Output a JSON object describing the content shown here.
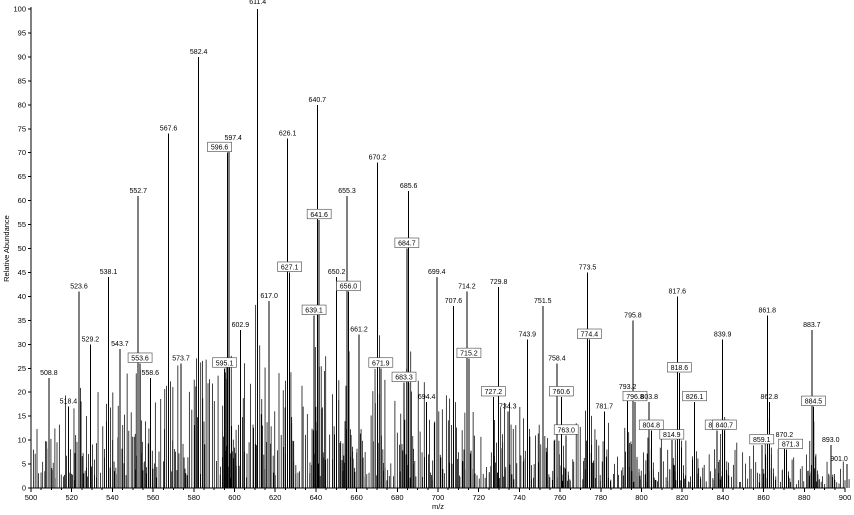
{
  "colors": {
    "background": "#ffffff",
    "foreground": "#000000"
  },
  "chart_data": {
    "type": "bar",
    "title": "",
    "xlabel": "m/z",
    "ylabel": "Relative Abundance",
    "xlim": [
      500,
      900
    ],
    "ylim": [
      0,
      100
    ],
    "x_major_tick_step": 20,
    "x_minor_tick_step": 5,
    "y_tick_step": 5,
    "grid": false,
    "legend": false,
    "peaks": [
      {
        "mz": 508.8,
        "ra": 23
      },
      {
        "mz": 518.4,
        "ra": 17
      },
      {
        "mz": 523.6,
        "ra": 41
      },
      {
        "mz": 529.2,
        "ra": 30
      },
      {
        "mz": 538.1,
        "ra": 44
      },
      {
        "mz": 543.7,
        "ra": 29
      },
      {
        "mz": 552.7,
        "ra": 61
      },
      {
        "mz": 553.6,
        "ra": 26,
        "boxed": true
      },
      {
        "mz": 558.6,
        "ra": 23
      },
      {
        "mz": 567.6,
        "ra": 74
      },
      {
        "mz": 573.7,
        "ra": 26
      },
      {
        "mz": 582.4,
        "ra": 90
      },
      {
        "mz": 595.1,
        "ra": 25,
        "boxed": true
      },
      {
        "mz": 596.6,
        "ra": 70,
        "boxed": true,
        "dx": -8
      },
      {
        "mz": 597.4,
        "ra": 72,
        "dx": 4
      },
      {
        "mz": 602.9,
        "ra": 33
      },
      {
        "mz": 611.4,
        "ra": 100,
        "dy": -3
      },
      {
        "mz": 617.0,
        "ra": 39
      },
      {
        "mz": 626.1,
        "ra": 73
      },
      {
        "mz": 627.1,
        "ra": 45,
        "boxed": true
      },
      {
        "mz": 639.1,
        "ra": 36,
        "boxed": true
      },
      {
        "mz": 640.7,
        "ra": 80
      },
      {
        "mz": 641.6,
        "ra": 56,
        "boxed": true
      },
      {
        "mz": 650.2,
        "ra": 44
      },
      {
        "mz": 655.3,
        "ra": 61
      },
      {
        "mz": 656.0,
        "ra": 41,
        "boxed": true
      },
      {
        "mz": 661.2,
        "ra": 32
      },
      {
        "mz": 670.2,
        "ra": 68
      },
      {
        "mz": 671.9,
        "ra": 25,
        "boxed": true
      },
      {
        "mz": 683.3,
        "ra": 22,
        "boxed": true
      },
      {
        "mz": 684.7,
        "ra": 50,
        "boxed": true
      },
      {
        "mz": 685.6,
        "ra": 62
      },
      {
        "mz": 694.4,
        "ra": 18
      },
      {
        "mz": 699.4,
        "ra": 44
      },
      {
        "mz": 707.6,
        "ra": 38
      },
      {
        "mz": 714.2,
        "ra": 41
      },
      {
        "mz": 715.2,
        "ra": 27,
        "boxed": true
      },
      {
        "mz": 727.2,
        "ra": 19,
        "boxed": true
      },
      {
        "mz": 729.8,
        "ra": 42
      },
      {
        "mz": 734.3,
        "ra": 16
      },
      {
        "mz": 743.9,
        "ra": 31
      },
      {
        "mz": 751.5,
        "ra": 38
      },
      {
        "mz": 758.4,
        "ra": 26
      },
      {
        "mz": 760.6,
        "ra": 19,
        "boxed": true
      },
      {
        "mz": 763.0,
        "ra": 11,
        "boxed": true
      },
      {
        "mz": 773.5,
        "ra": 45
      },
      {
        "mz": 774.4,
        "ra": 31,
        "boxed": true
      },
      {
        "mz": 781.7,
        "ra": 16
      },
      {
        "mz": 793.2,
        "ra": 20
      },
      {
        "mz": 795.8,
        "ra": 35
      },
      {
        "mz": 796.8,
        "ra": 18,
        "boxed": true
      },
      {
        "mz": 803.8,
        "ra": 18
      },
      {
        "mz": 804.8,
        "ra": 12,
        "boxed": true
      },
      {
        "mz": 814.9,
        "ra": 10,
        "boxed": true
      },
      {
        "mz": 817.6,
        "ra": 40
      },
      {
        "mz": 818.6,
        "ra": 24,
        "boxed": true
      },
      {
        "mz": 826.1,
        "ra": 18,
        "boxed": true
      },
      {
        "mz": 837.2,
        "ra": 12,
        "boxed": true
      },
      {
        "mz": 839.9,
        "ra": 31
      },
      {
        "mz": 840.7,
        "ra": 12,
        "boxed": true
      },
      {
        "mz": 859.1,
        "ra": 9,
        "boxed": true
      },
      {
        "mz": 861.8,
        "ra": 36
      },
      {
        "mz": 862.8,
        "ra": 18
      },
      {
        "mz": 870.2,
        "ra": 10
      },
      {
        "mz": 871.3,
        "ra": 8,
        "boxed": true,
        "dx": 4
      },
      {
        "mz": 883.7,
        "ra": 33
      },
      {
        "mz": 884.5,
        "ra": 17,
        "boxed": true
      },
      {
        "mz": 893.0,
        "ra": 9
      },
      {
        "mz": 901.0,
        "ra": 5,
        "dx": -8
      }
    ],
    "noise": {
      "seed": 1234567,
      "start": 501,
      "end": 899,
      "step": 1,
      "jitter": 0.6,
      "min_frac": 0.1,
      "power": 1.4,
      "envelope": [
        [
          500,
          18
        ],
        [
          515,
          20
        ],
        [
          540,
          24
        ],
        [
          560,
          27
        ],
        [
          585,
          28
        ],
        [
          610,
          28
        ],
        [
          640,
          29
        ],
        [
          660,
          26
        ],
        [
          685,
          24
        ],
        [
          705,
          20
        ],
        [
          735,
          18
        ],
        [
          765,
          15
        ],
        [
          795,
          13
        ],
        [
          825,
          11
        ],
        [
          855,
          9
        ],
        [
          900,
          7
        ]
      ],
      "satellites": [
        [
          -2,
          0.14
        ],
        [
          -1,
          0.32
        ],
        [
          1,
          0.38
        ],
        [
          2,
          0.18
        ],
        [
          3,
          0.09
        ]
      ]
    }
  }
}
